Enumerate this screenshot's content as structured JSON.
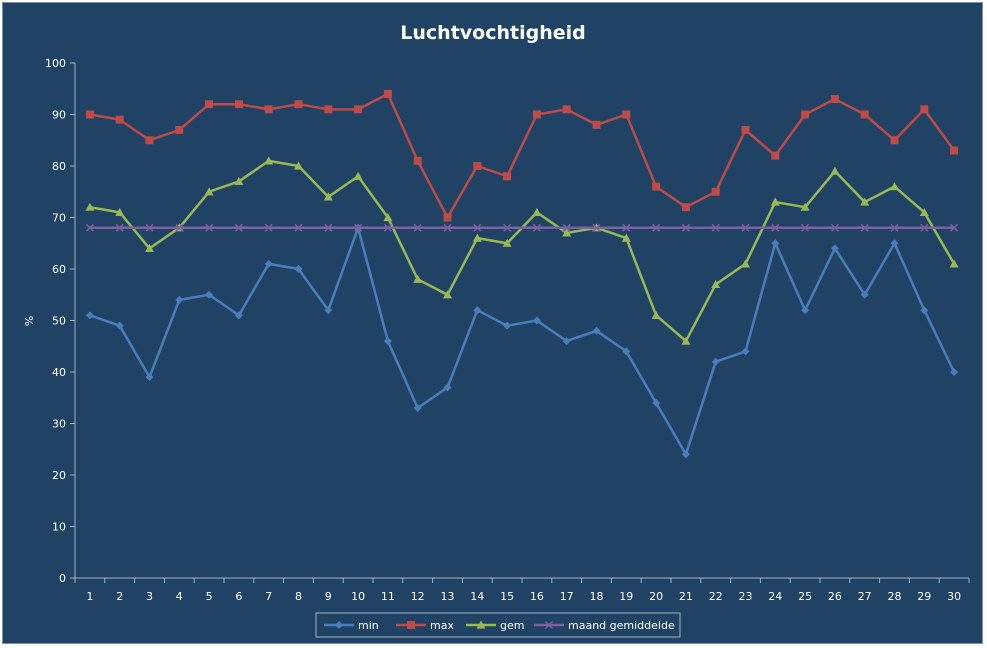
{
  "chart_data": {
    "type": "line",
    "title": "Luchtvochtigheid",
    "xlabel": "",
    "ylabel": "%",
    "ylim": [
      0,
      100
    ],
    "yticks": [
      0,
      10,
      20,
      30,
      40,
      50,
      60,
      70,
      80,
      90,
      100
    ],
    "categories": [
      "1",
      "2",
      "3",
      "4",
      "5",
      "6",
      "7",
      "8",
      "9",
      "10",
      "11",
      "12",
      "13",
      "14",
      "15",
      "16",
      "17",
      "18",
      "19",
      "20",
      "21",
      "22",
      "23",
      "24",
      "25",
      "26",
      "27",
      "28",
      "29",
      "30"
    ],
    "grid": false,
    "legend_position": "bottom",
    "background_color": "#1f4265",
    "series": [
      {
        "name": "min",
        "color": "#4a7ebb",
        "marker": "diamond",
        "values": [
          51,
          49,
          39,
          54,
          55,
          51,
          61,
          60,
          52,
          68,
          46,
          33,
          37,
          52,
          49,
          50,
          46,
          48,
          44,
          34,
          24,
          42,
          44,
          65,
          52,
          64,
          55,
          65,
          52,
          40
        ]
      },
      {
        "name": "max",
        "color": "#be4b48",
        "marker": "square",
        "values": [
          90,
          89,
          85,
          87,
          92,
          92,
          91,
          92,
          91,
          91,
          94,
          81,
          70,
          80,
          78,
          90,
          91,
          88,
          90,
          76,
          72,
          75,
          87,
          82,
          90,
          93,
          90,
          85,
          91,
          83
        ]
      },
      {
        "name": "gem",
        "color": "#98b954",
        "marker": "triangle",
        "values": [
          72,
          71,
          64,
          68,
          75,
          77,
          81,
          80,
          74,
          78,
          70,
          58,
          55,
          66,
          65,
          71,
          67,
          68,
          66,
          51,
          46,
          57,
          61,
          73,
          72,
          79,
          73,
          76,
          71,
          61
        ]
      },
      {
        "name": "maand gemiddelde",
        "color": "#7d60a0",
        "marker": "x",
        "values": [
          68,
          68,
          68,
          68,
          68,
          68,
          68,
          68,
          68,
          68,
          68,
          68,
          68,
          68,
          68,
          68,
          68,
          68,
          68,
          68,
          68,
          68,
          68,
          68,
          68,
          68,
          68,
          68,
          68,
          68
        ]
      }
    ]
  }
}
